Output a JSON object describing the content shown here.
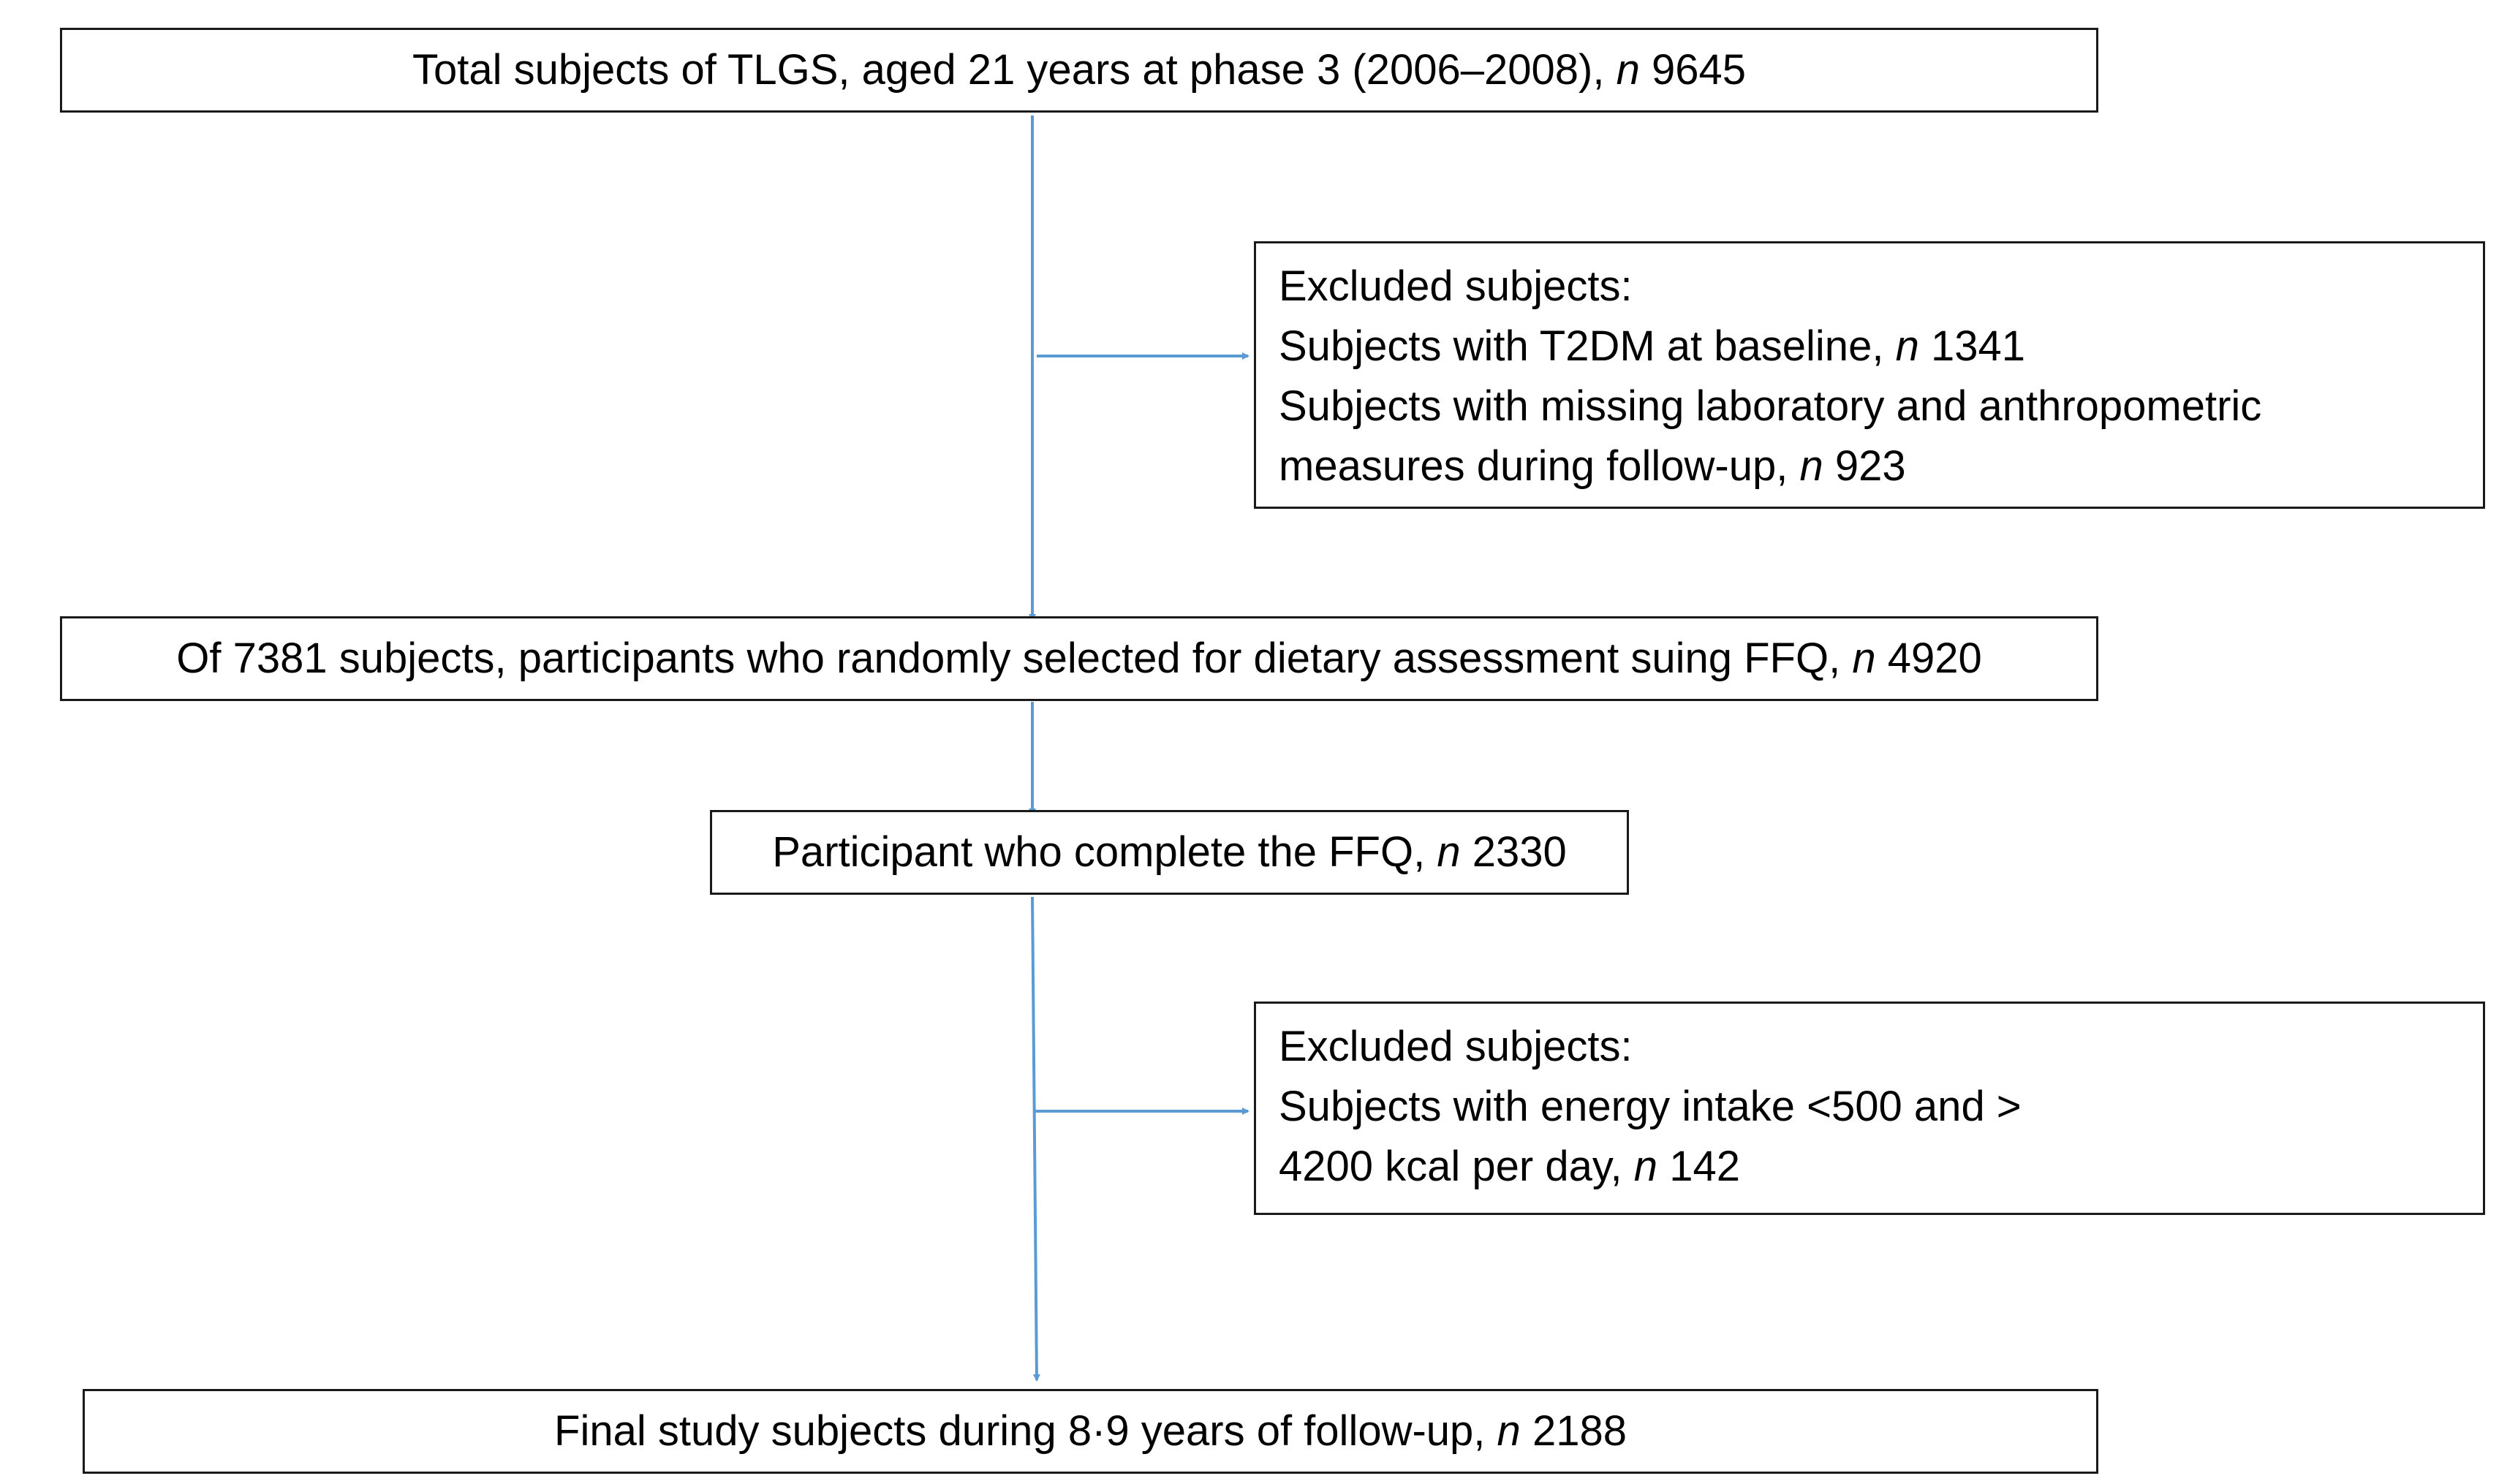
{
  "flowchart": {
    "colors": {
      "arrow": "#5b9bd5",
      "border": "#1a1a1a",
      "text": "#000000"
    },
    "box_total": {
      "text": "Total subjects of TLGS, aged 21 years at phase 3 (2006–2008),",
      "n_label": "n",
      "n_value": "9645"
    },
    "box_excluded_1": {
      "heading": "Excluded subjects:",
      "line1_text": "Subjects with T2DM at baseline,",
      "line1_n_label": "n",
      "line1_n_value": "1341",
      "line2_text": "Subjects with missing laboratory and anthropometric",
      "line3_text": "measures during follow-up,",
      "line3_n_label": "n",
      "line3_n_value": "923"
    },
    "box_selected": {
      "text": "Of 7381 subjects, participants who randomly selected for dietary assessment suing FFQ,",
      "n_label": "n",
      "n_value": "4920"
    },
    "box_completed": {
      "text": "Participant who complete the FFQ,",
      "n_label": "n",
      "n_value": "2330"
    },
    "box_excluded_2": {
      "heading": "Excluded subjects:",
      "line1_text": "Subjects with energy intake <500 and >",
      "line2_text": "4200 kcal per day,",
      "line2_n_label": "n",
      "line2_n_value": "142"
    },
    "box_final": {
      "text": "Final study subjects during 8·9 years of follow-up,",
      "n_label": "n",
      "n_value": "2188"
    }
  }
}
